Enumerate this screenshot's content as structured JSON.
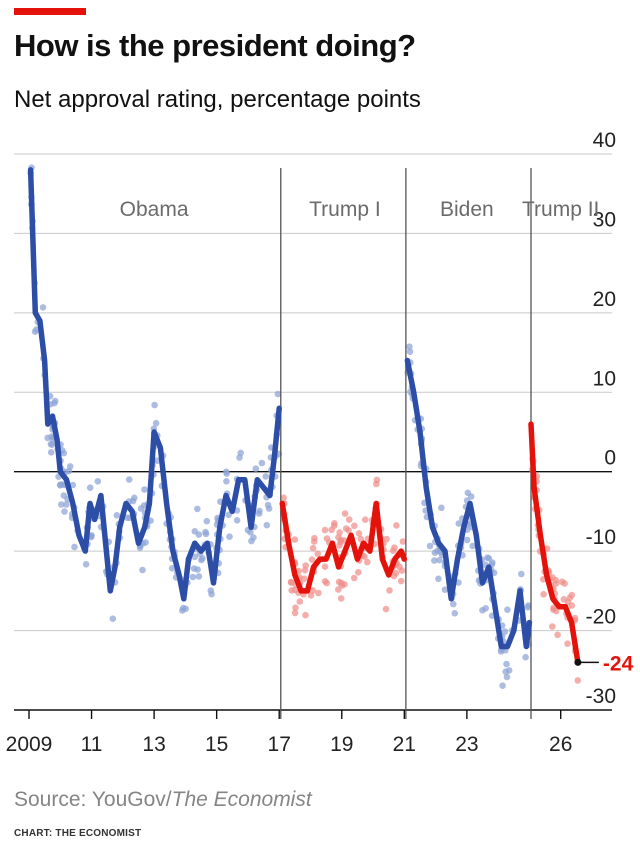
{
  "header": {
    "title": "How is the president doing?",
    "subtitle": "Net approval rating, percentage points"
  },
  "footer": {
    "source_prefix": "Source: YouGov/",
    "source_publication": "The Economist",
    "credit": "CHART: THE ECONOMIST"
  },
  "colors": {
    "accent": "#e3120b",
    "democrat": "#2d4ea6",
    "republican": "#e3120b",
    "democrat_dots": "#8ea3d6",
    "republican_dots": "#ee8f8a"
  },
  "chart_data": {
    "type": "line",
    "ylim": [
      -30,
      40
    ],
    "yticks": [
      40,
      30,
      20,
      10,
      0,
      -10,
      -20,
      -30
    ],
    "ytick_labels": [
      "40",
      "30",
      "20",
      "10",
      "0",
      "-10",
      "-20",
      "-30"
    ],
    "xlim": [
      2009,
      2027.8
    ],
    "xticks": [
      2009,
      2011,
      2013,
      2015,
      2017,
      2019,
      2021,
      2023,
      2026
    ],
    "xtick_labels": [
      "2009",
      "11",
      "13",
      "15",
      "17",
      "19",
      "21",
      "23",
      "26"
    ],
    "grid": "horizontal",
    "dividers": [
      2017.05,
      2021.05,
      2025.05
    ],
    "terms": [
      {
        "label": "Obama",
        "x": 2013.0
      },
      {
        "label": "Trump I",
        "x": 2019.1
      },
      {
        "label": "Biden",
        "x": 2023.0
      },
      {
        "label": "Trump II",
        "x": 2026.0
      }
    ],
    "end_label": "-24",
    "end_value": -24,
    "series": [
      {
        "party": "democrat",
        "x": [
          2009.05,
          2009.2,
          2009.35,
          2009.5,
          2009.6,
          2009.75,
          2009.9,
          2010.0,
          2010.2,
          2010.4,
          2010.6,
          2010.8,
          2010.95,
          2011.1,
          2011.3,
          2011.45,
          2011.6,
          2011.75,
          2011.9,
          2012.1,
          2012.3,
          2012.5,
          2012.7,
          2012.85,
          2013.0,
          2013.2,
          2013.4,
          2013.6,
          2013.8,
          2013.95,
          2014.1,
          2014.3,
          2014.5,
          2014.7,
          2014.9,
          2015.1,
          2015.3,
          2015.5,
          2015.7,
          2015.9,
          2016.1,
          2016.3,
          2016.5,
          2016.7,
          2016.85,
          2017.0
        ],
        "y": [
          38,
          20,
          19,
          14,
          6,
          7,
          4,
          0,
          -1,
          -4,
          -8,
          -10,
          -4,
          -6,
          -3,
          -9,
          -15,
          -12,
          -7,
          -4,
          -5,
          -9,
          -7,
          -4,
          5,
          3,
          -4,
          -10,
          -13,
          -16,
          -11,
          -9,
          -10,
          -9,
          -14,
          -7,
          -3,
          -5,
          -1,
          -1,
          -7,
          -1,
          -2,
          -3,
          2,
          8
        ]
      },
      {
        "party": "republican",
        "x": [
          2017.1,
          2017.3,
          2017.5,
          2017.7,
          2017.9,
          2018.1,
          2018.3,
          2018.5,
          2018.7,
          2018.9,
          2019.1,
          2019.3,
          2019.5,
          2019.7,
          2019.9,
          2020.1,
          2020.3,
          2020.5,
          2020.7,
          2020.9,
          2021.0
        ],
        "y": [
          -4,
          -9,
          -13,
          -15,
          -15,
          -12,
          -11,
          -11,
          -9,
          -12,
          -10,
          -8,
          -11,
          -9,
          -10,
          -4,
          -11,
          -13,
          -11,
          -10,
          -11
        ]
      },
      {
        "party": "democrat",
        "x": [
          2021.1,
          2021.3,
          2021.5,
          2021.7,
          2021.9,
          2022.1,
          2022.3,
          2022.5,
          2022.7,
          2022.9,
          2023.1,
          2023.3,
          2023.5,
          2023.7,
          2023.9,
          2024.1,
          2024.3,
          2024.5,
          2024.7,
          2024.9,
          2025.0
        ],
        "y": [
          14,
          10,
          5,
          -2,
          -7,
          -9,
          -10,
          -16,
          -11,
          -7,
          -4,
          -8,
          -14,
          -12,
          -17,
          -22,
          -22,
          -20,
          -15,
          -22,
          -19
        ]
      },
      {
        "party": "republican",
        "x": [
          2025.05,
          2025.15,
          2025.35,
          2025.55,
          2025.75,
          2025.95,
          2026.15,
          2026.35,
          2026.55
        ],
        "y": [
          6,
          -2,
          -8,
          -13,
          -16,
          -17,
          -17,
          -19,
          -24
        ]
      }
    ]
  }
}
